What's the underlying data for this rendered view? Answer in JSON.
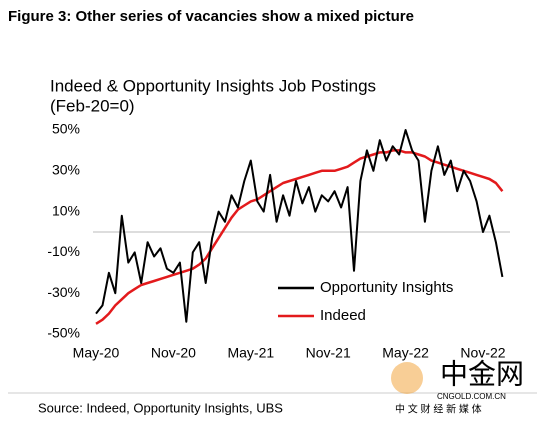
{
  "header": {
    "title": "Figure 3: Other series of vacancies show a mixed picture"
  },
  "chart_data": {
    "type": "line",
    "title": "Indeed & Opportunity Insights Job Postings",
    "subtitle": "(Feb-20=0)",
    "categories": [
      "May-20",
      null,
      null,
      null,
      null,
      null,
      null,
      null,
      null,
      null,
      null,
      null,
      "Nov-20",
      null,
      null,
      null,
      null,
      null,
      null,
      null,
      null,
      null,
      null,
      null,
      "May-21",
      null,
      null,
      null,
      null,
      null,
      null,
      null,
      null,
      null,
      null,
      null,
      "Nov-21",
      null,
      null,
      null,
      null,
      null,
      null,
      null,
      null,
      null,
      null,
      null,
      "May-22",
      null,
      null,
      null,
      null,
      null,
      null,
      null,
      null,
      null,
      null,
      null,
      "Nov-22",
      null,
      null,
      null
    ],
    "ylim": [
      -50,
      50
    ],
    "yticks": [
      {
        "value": -50,
        "label": "-50%"
      },
      {
        "value": -30,
        "label": "-30%"
      },
      {
        "value": -10,
        "label": "-10%"
      },
      {
        "value": 10,
        "label": "10%"
      },
      {
        "value": 30,
        "label": "30%"
      },
      {
        "value": 50,
        "label": "50%"
      }
    ],
    "legend": "lower right",
    "series": [
      {
        "name": "Opportunity Insights",
        "color": "#000000",
        "values": [
          -40,
          -36,
          -20,
          -30,
          8,
          -15,
          -10,
          -25,
          -5,
          -12,
          -8,
          -18,
          -20,
          -15,
          -44,
          -10,
          -5,
          -25,
          -3,
          10,
          5,
          18,
          12,
          25,
          35,
          15,
          10,
          28,
          5,
          18,
          8,
          25,
          14,
          22,
          10,
          18,
          15,
          20,
          12,
          22,
          -19,
          25,
          40,
          30,
          45,
          35,
          42,
          38,
          50,
          40,
          35,
          5,
          30,
          42,
          28,
          35,
          20,
          30,
          25,
          15,
          0,
          8,
          -5,
          -22
        ]
      },
      {
        "name": "Indeed",
        "color": "#e31a1c",
        "values": [
          -45,
          -43,
          -40,
          -36,
          -33,
          -30,
          -28,
          -26,
          -25,
          -24,
          -23,
          -22,
          -21,
          -20,
          -19,
          -18,
          -16,
          -13,
          -8,
          -3,
          2,
          7,
          11,
          13,
          15,
          16,
          18,
          20,
          22,
          24,
          25,
          26,
          27,
          28,
          29,
          30,
          30,
          30,
          31,
          32,
          34,
          36,
          37,
          38,
          39,
          39,
          40,
          40,
          39,
          39,
          38,
          37,
          35,
          34,
          33,
          32,
          31,
          30,
          29,
          28,
          27,
          26,
          24,
          20
        ]
      }
    ]
  },
  "footer": {
    "source": "Source: Indeed, Opportunity Insights, UBS"
  },
  "watermark": {
    "brand": "中金网",
    "url": "CNGOLD.COM.CN",
    "tagline": "中 文 财 经 新 媒 体"
  }
}
